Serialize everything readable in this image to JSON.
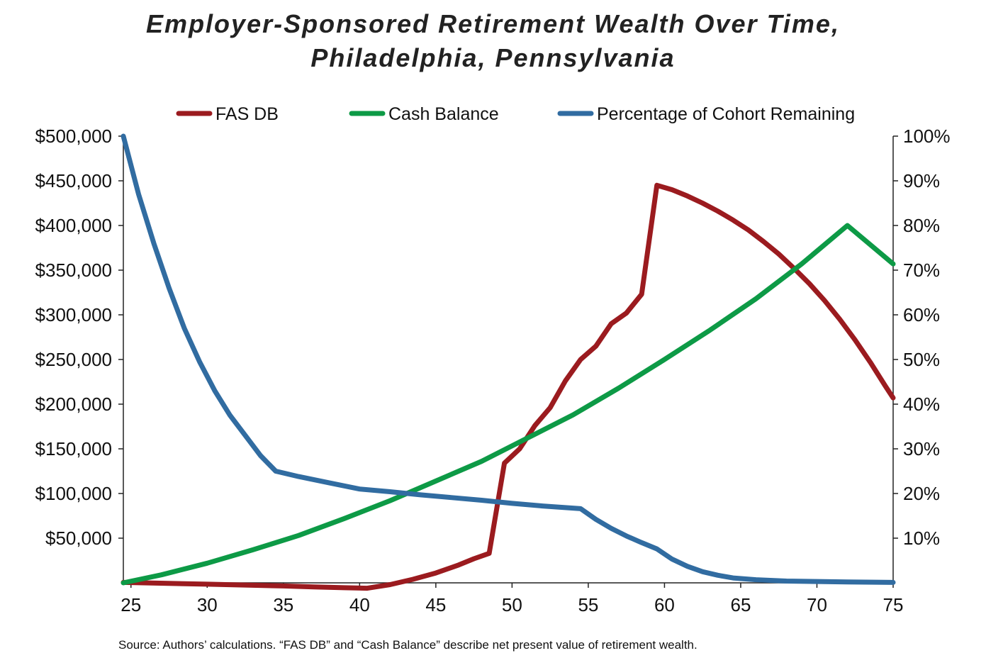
{
  "chart_data": {
    "type": "line",
    "title": "Employer-Sponsored Retirement Wealth Over Time,",
    "subtitle": "Philadelphia, Pennsylvania",
    "xlabel": "",
    "ylabel_left": "",
    "ylabel_right": "",
    "xlim": [
      24.5,
      75
    ],
    "ylim_left": [
      0,
      500000
    ],
    "ylim_right": [
      0,
      100
    ],
    "grid": false,
    "legend_placement": "top",
    "x_ticks": [
      25,
      30,
      35,
      40,
      45,
      50,
      55,
      60,
      65,
      70,
      75
    ],
    "y_left_ticks": [
      {
        "value": 50000,
        "label": "$50,000"
      },
      {
        "value": 100000,
        "label": "$100,000"
      },
      {
        "value": 150000,
        "label": "$150,000"
      },
      {
        "value": 200000,
        "label": "$200,000"
      },
      {
        "value": 250000,
        "label": "$250,000"
      },
      {
        "value": 300000,
        "label": "$300,000"
      },
      {
        "value": 350000,
        "label": "$350,000"
      },
      {
        "value": 400000,
        "label": "$400,000"
      },
      {
        "value": 450000,
        "label": "$450,000"
      },
      {
        "value": 500000,
        "label": "$500,000"
      }
    ],
    "y_right_ticks": [
      {
        "value": 10,
        "label": "10%"
      },
      {
        "value": 20,
        "label": "20%"
      },
      {
        "value": 30,
        "label": "30%"
      },
      {
        "value": 40,
        "label": "40%"
      },
      {
        "value": 50,
        "label": "50%"
      },
      {
        "value": 60,
        "label": "60%"
      },
      {
        "value": 70,
        "label": "70%"
      },
      {
        "value": 80,
        "label": "80%"
      },
      {
        "value": 90,
        "label": "90%"
      },
      {
        "value": 100,
        "label": "100%"
      }
    ],
    "series": [
      {
        "name": "FAS DB",
        "color": "#9b1b1f",
        "axis": "left",
        "x": [
          24.5,
          30,
          35,
          37,
          39,
          40.5,
          42,
          43.5,
          45,
          46.5,
          47.5,
          48.5,
          49.5,
          50.5,
          51.5,
          52.5,
          53.5,
          54.5,
          55.5,
          56.5,
          57.5,
          58.5,
          59.5,
          60.5,
          61.5,
          62.5,
          63.5,
          64.5,
          65.5,
          66.5,
          67.5,
          68.5,
          69.5,
          70.5,
          71.5,
          72.5,
          73.5,
          74.5,
          75
        ],
        "y": [
          500,
          -1500,
          -3500,
          -4500,
          -5500,
          -6000,
          -2000,
          4000,
          11000,
          20000,
          27000,
          33000,
          134000,
          150000,
          176000,
          196000,
          226000,
          250000,
          265000,
          290000,
          302000,
          323000,
          445000,
          440000,
          433000,
          425000,
          416000,
          406000,
          395000,
          382000,
          368000,
          352000,
          335000,
          316000,
          295000,
          272000,
          247000,
          220000,
          207000
        ]
      },
      {
        "name": "Cash Balance",
        "color": "#0d9a46",
        "axis": "left",
        "x": [
          24.5,
          27,
          30,
          33,
          36,
          39,
          42,
          45,
          48,
          51,
          54,
          57,
          60,
          63,
          66,
          69,
          72,
          75
        ],
        "y": [
          0,
          9000,
          22000,
          37000,
          53000,
          72000,
          92000,
          114000,
          136000,
          162000,
          188000,
          218000,
          250000,
          283000,
          318000,
          357000,
          400000,
          357000
        ]
      },
      {
        "name": "Percentage of Cohort Remaining",
        "color": "#316ca1",
        "axis": "right",
        "x": [
          24.5,
          25.5,
          26.5,
          27.5,
          28.5,
          29.5,
          30.5,
          31.5,
          32.5,
          33.5,
          34.5,
          36,
          38,
          40,
          42,
          44,
          46,
          48,
          50,
          52,
          54.5,
          55.5,
          56.5,
          57.5,
          58.5,
          59.5,
          60.5,
          61.5,
          62.5,
          63.5,
          64.5,
          66,
          68,
          70,
          72,
          75
        ],
        "y": [
          100,
          87,
          76,
          66,
          57,
          49.5,
          43,
          37.5,
          33,
          28.5,
          25,
          23.8,
          22.4,
          21,
          20.4,
          19.7,
          19.1,
          18.5,
          17.8,
          17.2,
          16.6,
          14.2,
          12.2,
          10.5,
          9,
          7.6,
          5.3,
          3.7,
          2.5,
          1.7,
          1.1,
          0.7,
          0.4,
          0.3,
          0.2,
          0.1
        ]
      }
    ]
  },
  "source_note": "Source: Authors’ calculations. “FAS DB” and “Cash Balance” describe net present value of retirement wealth."
}
